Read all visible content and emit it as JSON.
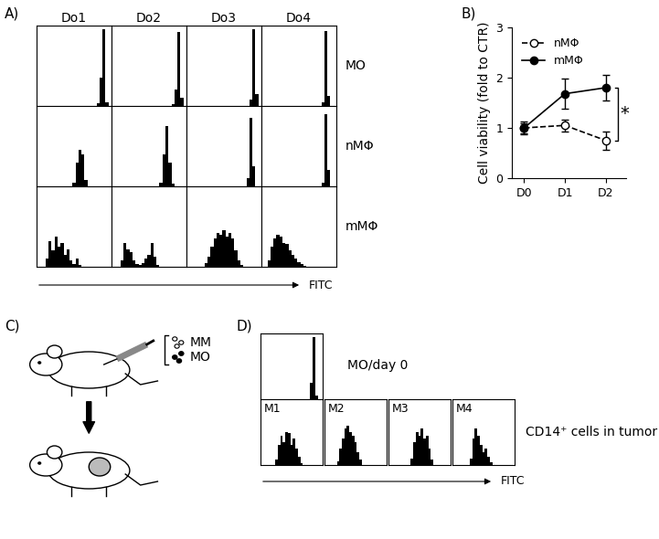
{
  "chart_data": [
    {
      "panel": "A)",
      "type": "histogram",
      "columns": [
        "Do1",
        "Do2",
        "Do3",
        "Do4"
      ],
      "rows": [
        "MO",
        "nMΦ",
        "mMΦ"
      ],
      "xlabel": "FITC",
      "xlim": [
        0,
        100
      ],
      "ylim": [
        0,
        100
      ],
      "tick_labels": false,
      "color": "#000000",
      "bins": [
        0,
        4,
        8,
        12,
        16,
        20,
        24,
        28,
        32,
        36,
        40,
        44,
        48,
        52,
        56,
        60,
        64,
        68,
        72,
        76,
        80,
        84,
        88,
        92,
        96,
        100
      ],
      "counts": [
        [
          [
            0,
            0,
            0,
            0,
            0,
            0,
            0,
            0,
            0,
            0,
            0,
            0,
            0,
            0,
            0,
            0,
            0,
            0,
            0,
            0,
            3,
            35,
            95,
            5,
            0
          ],
          [
            0,
            0,
            0,
            0,
            0,
            0,
            0,
            0,
            0,
            0,
            0,
            0,
            0,
            0,
            0,
            0,
            0,
            0,
            0,
            0,
            2,
            20,
            92,
            10,
            0
          ],
          [
            0,
            0,
            0,
            0,
            0,
            0,
            0,
            0,
            0,
            0,
            0,
            0,
            0,
            0,
            0,
            0,
            0,
            0,
            0,
            0,
            0,
            8,
            96,
            15,
            0
          ],
          [
            0,
            0,
            0,
            0,
            0,
            0,
            0,
            0,
            0,
            0,
            0,
            0,
            0,
            0,
            0,
            0,
            0,
            0,
            0,
            0,
            4,
            93,
            12,
            0,
            0
          ]
        ],
        [
          [
            0,
            0,
            0,
            0,
            0,
            0,
            0,
            0,
            0,
            0,
            0,
            0,
            5,
            30,
            45,
            40,
            8,
            0,
            0,
            0,
            0,
            0,
            0,
            0,
            0
          ],
          [
            0,
            0,
            0,
            0,
            0,
            0,
            0,
            0,
            0,
            0,
            0,
            0,
            0,
            0,
            0,
            0,
            5,
            40,
            75,
            30,
            3,
            0,
            0,
            0,
            0
          ],
          [
            0,
            0,
            0,
            0,
            0,
            0,
            0,
            0,
            0,
            0,
            0,
            0,
            0,
            0,
            0,
            0,
            0,
            0,
            0,
            0,
            10,
            85,
            25,
            0,
            0
          ],
          [
            0,
            0,
            0,
            0,
            0,
            0,
            0,
            0,
            0,
            0,
            0,
            0,
            0,
            0,
            0,
            0,
            0,
            0,
            0,
            0,
            5,
            90,
            20,
            0,
            0
          ]
        ],
        [
          [
            0,
            0,
            0,
            10,
            32,
            20,
            38,
            25,
            30,
            15,
            22,
            8,
            3,
            10,
            2,
            0,
            0,
            0,
            0,
            0,
            0,
            0,
            0,
            0,
            0
          ],
          [
            0,
            0,
            0,
            8,
            30,
            22,
            18,
            8,
            3,
            2,
            5,
            10,
            15,
            30,
            12,
            2,
            0,
            0,
            0,
            0,
            0,
            0,
            0,
            0,
            0
          ],
          [
            0,
            0,
            0,
            0,
            0,
            0,
            5,
            12,
            25,
            35,
            42,
            40,
            45,
            38,
            42,
            35,
            20,
            8,
            2,
            0,
            0,
            0,
            0,
            0,
            0
          ],
          [
            0,
            0,
            8,
            25,
            35,
            40,
            38,
            30,
            28,
            20,
            15,
            10,
            6,
            3,
            1,
            0,
            0,
            0,
            0,
            0,
            0,
            0,
            0,
            0,
            0
          ]
        ]
      ]
    },
    {
      "panel": "B)",
      "type": "line",
      "categories": [
        "D0",
        "D1",
        "D2"
      ],
      "ylabel": "Cell viability (fold to CTR)",
      "ylim": [
        0,
        3
      ],
      "yticks": [
        0,
        1,
        2,
        3
      ],
      "legend": "upper left",
      "annotation": "*",
      "series": [
        {
          "name": "nMΦ",
          "color": "#000000",
          "marker": "open_circle",
          "line_style": "dashed",
          "values": [
            1.0,
            1.05,
            0.75
          ],
          "errors": [
            0.12,
            0.12,
            0.18
          ]
        },
        {
          "name": "mMΦ",
          "color": "#000000",
          "marker": "filled_circle",
          "line_style": "solid",
          "values": [
            1.0,
            1.68,
            1.8
          ],
          "errors": [
            0.1,
            0.3,
            0.25
          ]
        }
      ]
    },
    {
      "panel": "D)",
      "type": "histogram",
      "xlabel": "FITC",
      "xlim": [
        0,
        100
      ],
      "ylim": [
        0,
        100
      ],
      "tick_labels": false,
      "color": "#000000",
      "bins": [
        0,
        4,
        8,
        12,
        16,
        20,
        24,
        28,
        32,
        36,
        40,
        44,
        48,
        52,
        56,
        60,
        64,
        68,
        72,
        76,
        80,
        84,
        88,
        92,
        96,
        100
      ],
      "reference": {
        "label": "MO/day 0",
        "counts": [
          0,
          0,
          0,
          0,
          0,
          0,
          0,
          0,
          0,
          0,
          0,
          0,
          0,
          0,
          0,
          0,
          0,
          0,
          0,
          0,
          25,
          95,
          5,
          0,
          0
        ]
      },
      "group_label": "CD14⁺ cells in tumor",
      "panels": [
        {
          "name": "M1",
          "counts": [
            0,
            0,
            0,
            0,
            0,
            0,
            8,
            30,
            45,
            35,
            50,
            48,
            30,
            40,
            25,
            12,
            3,
            0,
            0,
            0,
            0,
            0,
            0,
            0,
            0
          ]
        },
        {
          "name": "M2",
          "counts": [
            0,
            0,
            0,
            0,
            0,
            5,
            25,
            40,
            55,
            60,
            50,
            45,
            35,
            20,
            8,
            0,
            0,
            0,
            0,
            0,
            0,
            0,
            0,
            0,
            0
          ]
        },
        {
          "name": "M3",
          "counts": [
            0,
            0,
            0,
            0,
            0,
            0,
            0,
            0,
            0,
            10,
            35,
            50,
            45,
            55,
            40,
            45,
            25,
            8,
            0,
            0,
            0,
            0,
            0,
            0,
            0
          ]
        },
        {
          "name": "M4",
          "counts": [
            0,
            0,
            0,
            0,
            0,
            0,
            0,
            10,
            40,
            55,
            45,
            30,
            20,
            25,
            12,
            4,
            0,
            0,
            0,
            0,
            0,
            0,
            0,
            0,
            0
          ]
        }
      ]
    }
  ],
  "diagram": {
    "panel": "C)",
    "labels": [
      "MM",
      "MO"
    ]
  }
}
